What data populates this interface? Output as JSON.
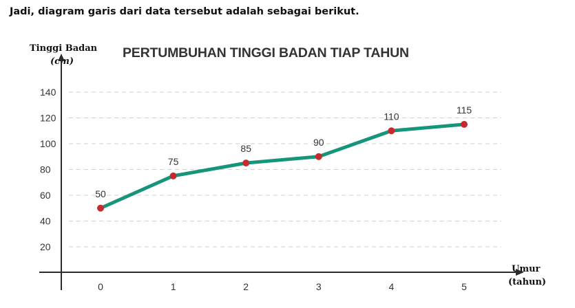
{
  "intro_text": "Jadi, diagram garis dari data tersebut adalah sebagai berikut.",
  "chart_data": {
    "type": "line",
    "title": "PERTUMBUHAN TINGGI BADAN TIAP TAHUN",
    "ylabel": "Tinggi Badan",
    "yunit": "(cm)",
    "xlabel": "Umur",
    "xunit": "(tahun)",
    "x": [
      0,
      1,
      2,
      3,
      4,
      5
    ],
    "series": [
      {
        "values": [
          50,
          75,
          85,
          90,
          110,
          115
        ],
        "color": "#17957a",
        "marker_color": "#c62a2f"
      }
    ],
    "data_labels": [
      "50",
      "75",
      "85",
      "90",
      "110",
      "115"
    ],
    "yticks": [
      20,
      40,
      60,
      80,
      100,
      120,
      140
    ],
    "xticks": [
      "0",
      "1",
      "2",
      "3",
      "4",
      "5"
    ],
    "ylim": [
      0,
      150
    ],
    "grid": true,
    "grid_style": "dashed",
    "axis_color": "#2b2b2b"
  }
}
